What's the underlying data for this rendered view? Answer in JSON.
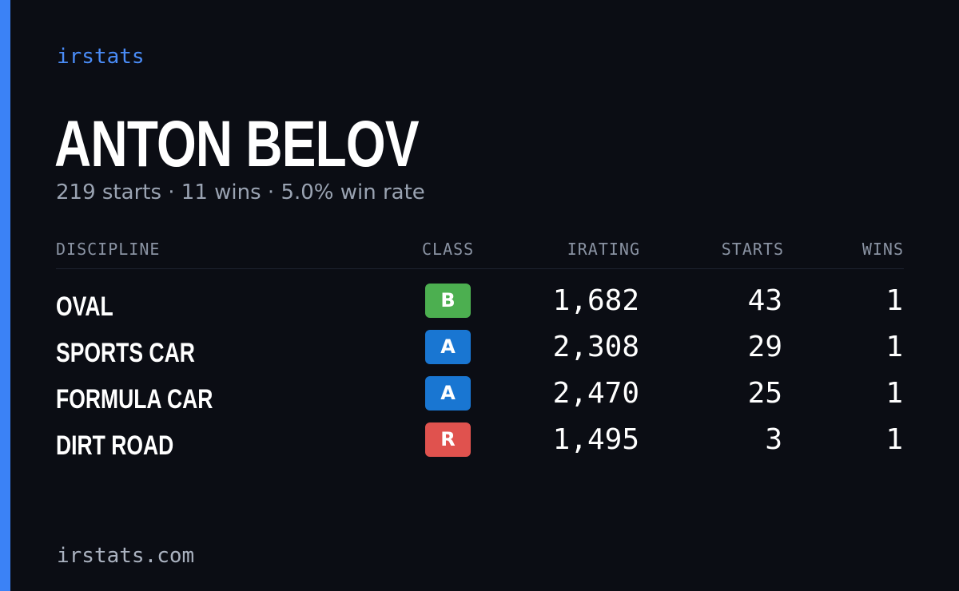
{
  "brand": "irstats",
  "driver": {
    "name": "ANTON BELOV",
    "summary": "219 starts · 11 wins · 5.0% win rate"
  },
  "table": {
    "headers": {
      "discipline": "DISCIPLINE",
      "class": "CLASS",
      "irating": "IRATING",
      "starts": "STARTS",
      "wins": "WINS"
    },
    "rows": [
      {
        "discipline": "OVAL",
        "class": "B",
        "class_color": "#4caf50",
        "irating": "1,682",
        "starts": "43",
        "wins": "1"
      },
      {
        "discipline": "SPORTS CAR",
        "class": "A",
        "class_color": "#1976d2",
        "irating": "2,308",
        "starts": "29",
        "wins": "1"
      },
      {
        "discipline": "FORMULA CAR",
        "class": "A",
        "class_color": "#1976d2",
        "irating": "2,470",
        "starts": "25",
        "wins": "1"
      },
      {
        "discipline": "DIRT ROAD",
        "class": "R",
        "class_color": "#e0524e",
        "irating": "1,495",
        "starts": "3",
        "wins": "1"
      }
    ]
  },
  "footer": "irstats.com",
  "colors": {
    "background": "#0b0d14",
    "accent": "#3b82f6"
  }
}
